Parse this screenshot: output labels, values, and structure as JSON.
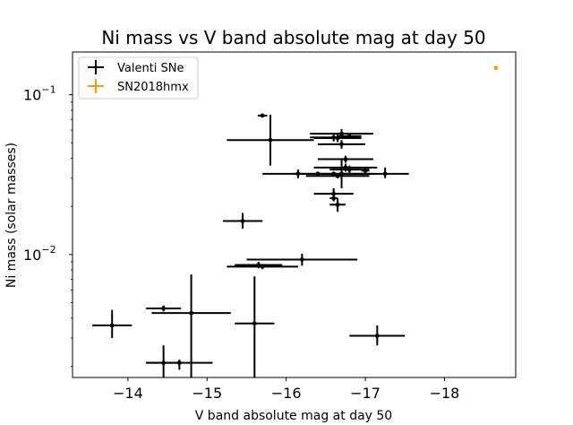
{
  "chart_data": {
    "type": "scatter",
    "title": "Ni mass vs V band absolute mag at day 50",
    "xlabel": "V band absolute mag at day 50",
    "ylabel": "Ni mass (solar masses)",
    "x_axis_inverted": true,
    "xlim": [
      -13.3,
      -18.9
    ],
    "ylim": [
      0.0017,
      0.185
    ],
    "yscale": "log",
    "grid": false,
    "legend_position": "top-left",
    "x_ticks": [
      {
        "value": -14,
        "label": "−14"
      },
      {
        "value": -15,
        "label": "−15"
      },
      {
        "value": -16,
        "label": "−16"
      },
      {
        "value": -17,
        "label": "−17"
      },
      {
        "value": -18,
        "label": "−18"
      }
    ],
    "y_ticks": [
      {
        "value": 0.01,
        "label": "10",
        "exp": "−2"
      },
      {
        "value": 0.1,
        "label": "10",
        "exp": "−1"
      }
    ],
    "series": [
      {
        "name": "Valenti SNe",
        "color": "#000000",
        "points": [
          {
            "x": -13.8,
            "y": 0.0036,
            "xerr": 0.25,
            "ylo": 0.003,
            "yhi": 0.0045
          },
          {
            "x": -14.45,
            "y": 0.0046,
            "xerr": 0.22,
            "ylo": 0.0044,
            "yhi": 0.0048
          },
          {
            "x": -14.45,
            "y": 0.0021,
            "xerr": 0.22,
            "ylo": 0.0017,
            "yhi": 0.0027
          },
          {
            "x": -14.65,
            "y": 0.0021,
            "xerr": 0.42,
            "ylo": 0.0019,
            "yhi": 0.0022
          },
          {
            "x": -14.8,
            "y": 0.0043,
            "xerr": 0.5,
            "ylo": 0.0017,
            "yhi": 0.0075
          },
          {
            "x": -15.45,
            "y": 0.0162,
            "xerr": 0.25,
            "ylo": 0.0145,
            "yhi": 0.0182
          },
          {
            "x": -15.6,
            "y": 0.0037,
            "xerr": 0.25,
            "ylo": 0.0017,
            "yhi": 0.0073
          },
          {
            "x": -15.65,
            "y": 0.0086,
            "xerr": 0.3,
            "ylo": 0.0082,
            "yhi": 0.009
          },
          {
            "x": -15.7,
            "y": 0.0084,
            "xerr": 0.45,
            "ylo": 0.0081,
            "yhi": 0.0087
          },
          {
            "x": -15.7,
            "y": 0.074,
            "xerr": 0.06,
            "ylo": 0.073,
            "yhi": 0.075
          },
          {
            "x": -15.8,
            "y": 0.052,
            "xerr": 0.55,
            "ylo": 0.036,
            "yhi": 0.075
          },
          {
            "x": -16.2,
            "y": 0.0093,
            "xerr": 0.7,
            "ylo": 0.0085,
            "yhi": 0.0101
          },
          {
            "x": -16.15,
            "y": 0.032,
            "xerr": 0.05,
            "ylo": 0.03,
            "yhi": 0.034
          },
          {
            "x": -16.4,
            "y": 0.032,
            "xerr": 0.7,
            "ylo": 0.031,
            "yhi": 0.033
          },
          {
            "x": -16.6,
            "y": 0.024,
            "xerr": 0.25,
            "ylo": 0.022,
            "yhi": 0.026
          },
          {
            "x": -16.6,
            "y": 0.0225,
            "xerr": 0.05,
            "ylo": 0.0215,
            "yhi": 0.0235
          },
          {
            "x": -16.6,
            "y": 0.054,
            "xerr": 0.3,
            "ylo": 0.051,
            "yhi": 0.057
          },
          {
            "x": -16.6,
            "y": 0.032,
            "xerr": 0.4,
            "ylo": 0.031,
            "yhi": 0.033
          },
          {
            "x": -16.65,
            "y": 0.031,
            "xerr": 0.4,
            "ylo": 0.03,
            "yhi": 0.032
          },
          {
            "x": -16.65,
            "y": 0.0205,
            "xerr": 0.1,
            "ylo": 0.0185,
            "yhi": 0.0225
          },
          {
            "x": -16.65,
            "y": 0.0535,
            "xerr": 0.3,
            "ylo": 0.0505,
            "yhi": 0.0565
          },
          {
            "x": -16.7,
            "y": 0.057,
            "xerr": 0.4,
            "ylo": 0.053,
            "yhi": 0.061
          },
          {
            "x": -16.7,
            "y": 0.049,
            "xerr": 0.3,
            "ylo": 0.046,
            "yhi": 0.052
          },
          {
            "x": -16.7,
            "y": 0.032,
            "xerr": 0.35,
            "ylo": 0.026,
            "yhi": 0.039
          },
          {
            "x": -16.75,
            "y": 0.0395,
            "xerr": 0.35,
            "ylo": 0.0375,
            "yhi": 0.0415
          },
          {
            "x": -16.75,
            "y": 0.035,
            "xerr": 0.4,
            "ylo": 0.033,
            "yhi": 0.037
          },
          {
            "x": -16.8,
            "y": 0.055,
            "xerr": 0.15,
            "ylo": 0.053,
            "yhi": 0.057
          },
          {
            "x": -16.8,
            "y": 0.034,
            "xerr": 0.25,
            "ylo": 0.032,
            "yhi": 0.036
          },
          {
            "x": -17.0,
            "y": 0.0335,
            "xerr": 0.05,
            "ylo": 0.032,
            "yhi": 0.035
          },
          {
            "x": -17.25,
            "y": 0.032,
            "xerr": 0.3,
            "ylo": 0.03,
            "yhi": 0.035
          },
          {
            "x": -17.15,
            "y": 0.0031,
            "xerr": 0.35,
            "ylo": 0.0027,
            "yhi": 0.0036
          }
        ]
      },
      {
        "name": "SN2018hmx",
        "color": "#ff9900",
        "points": [
          {
            "x": -18.65,
            "y": 0.147,
            "xerr": 0.02,
            "ylo": 0.144,
            "yhi": 0.15
          }
        ]
      }
    ]
  }
}
